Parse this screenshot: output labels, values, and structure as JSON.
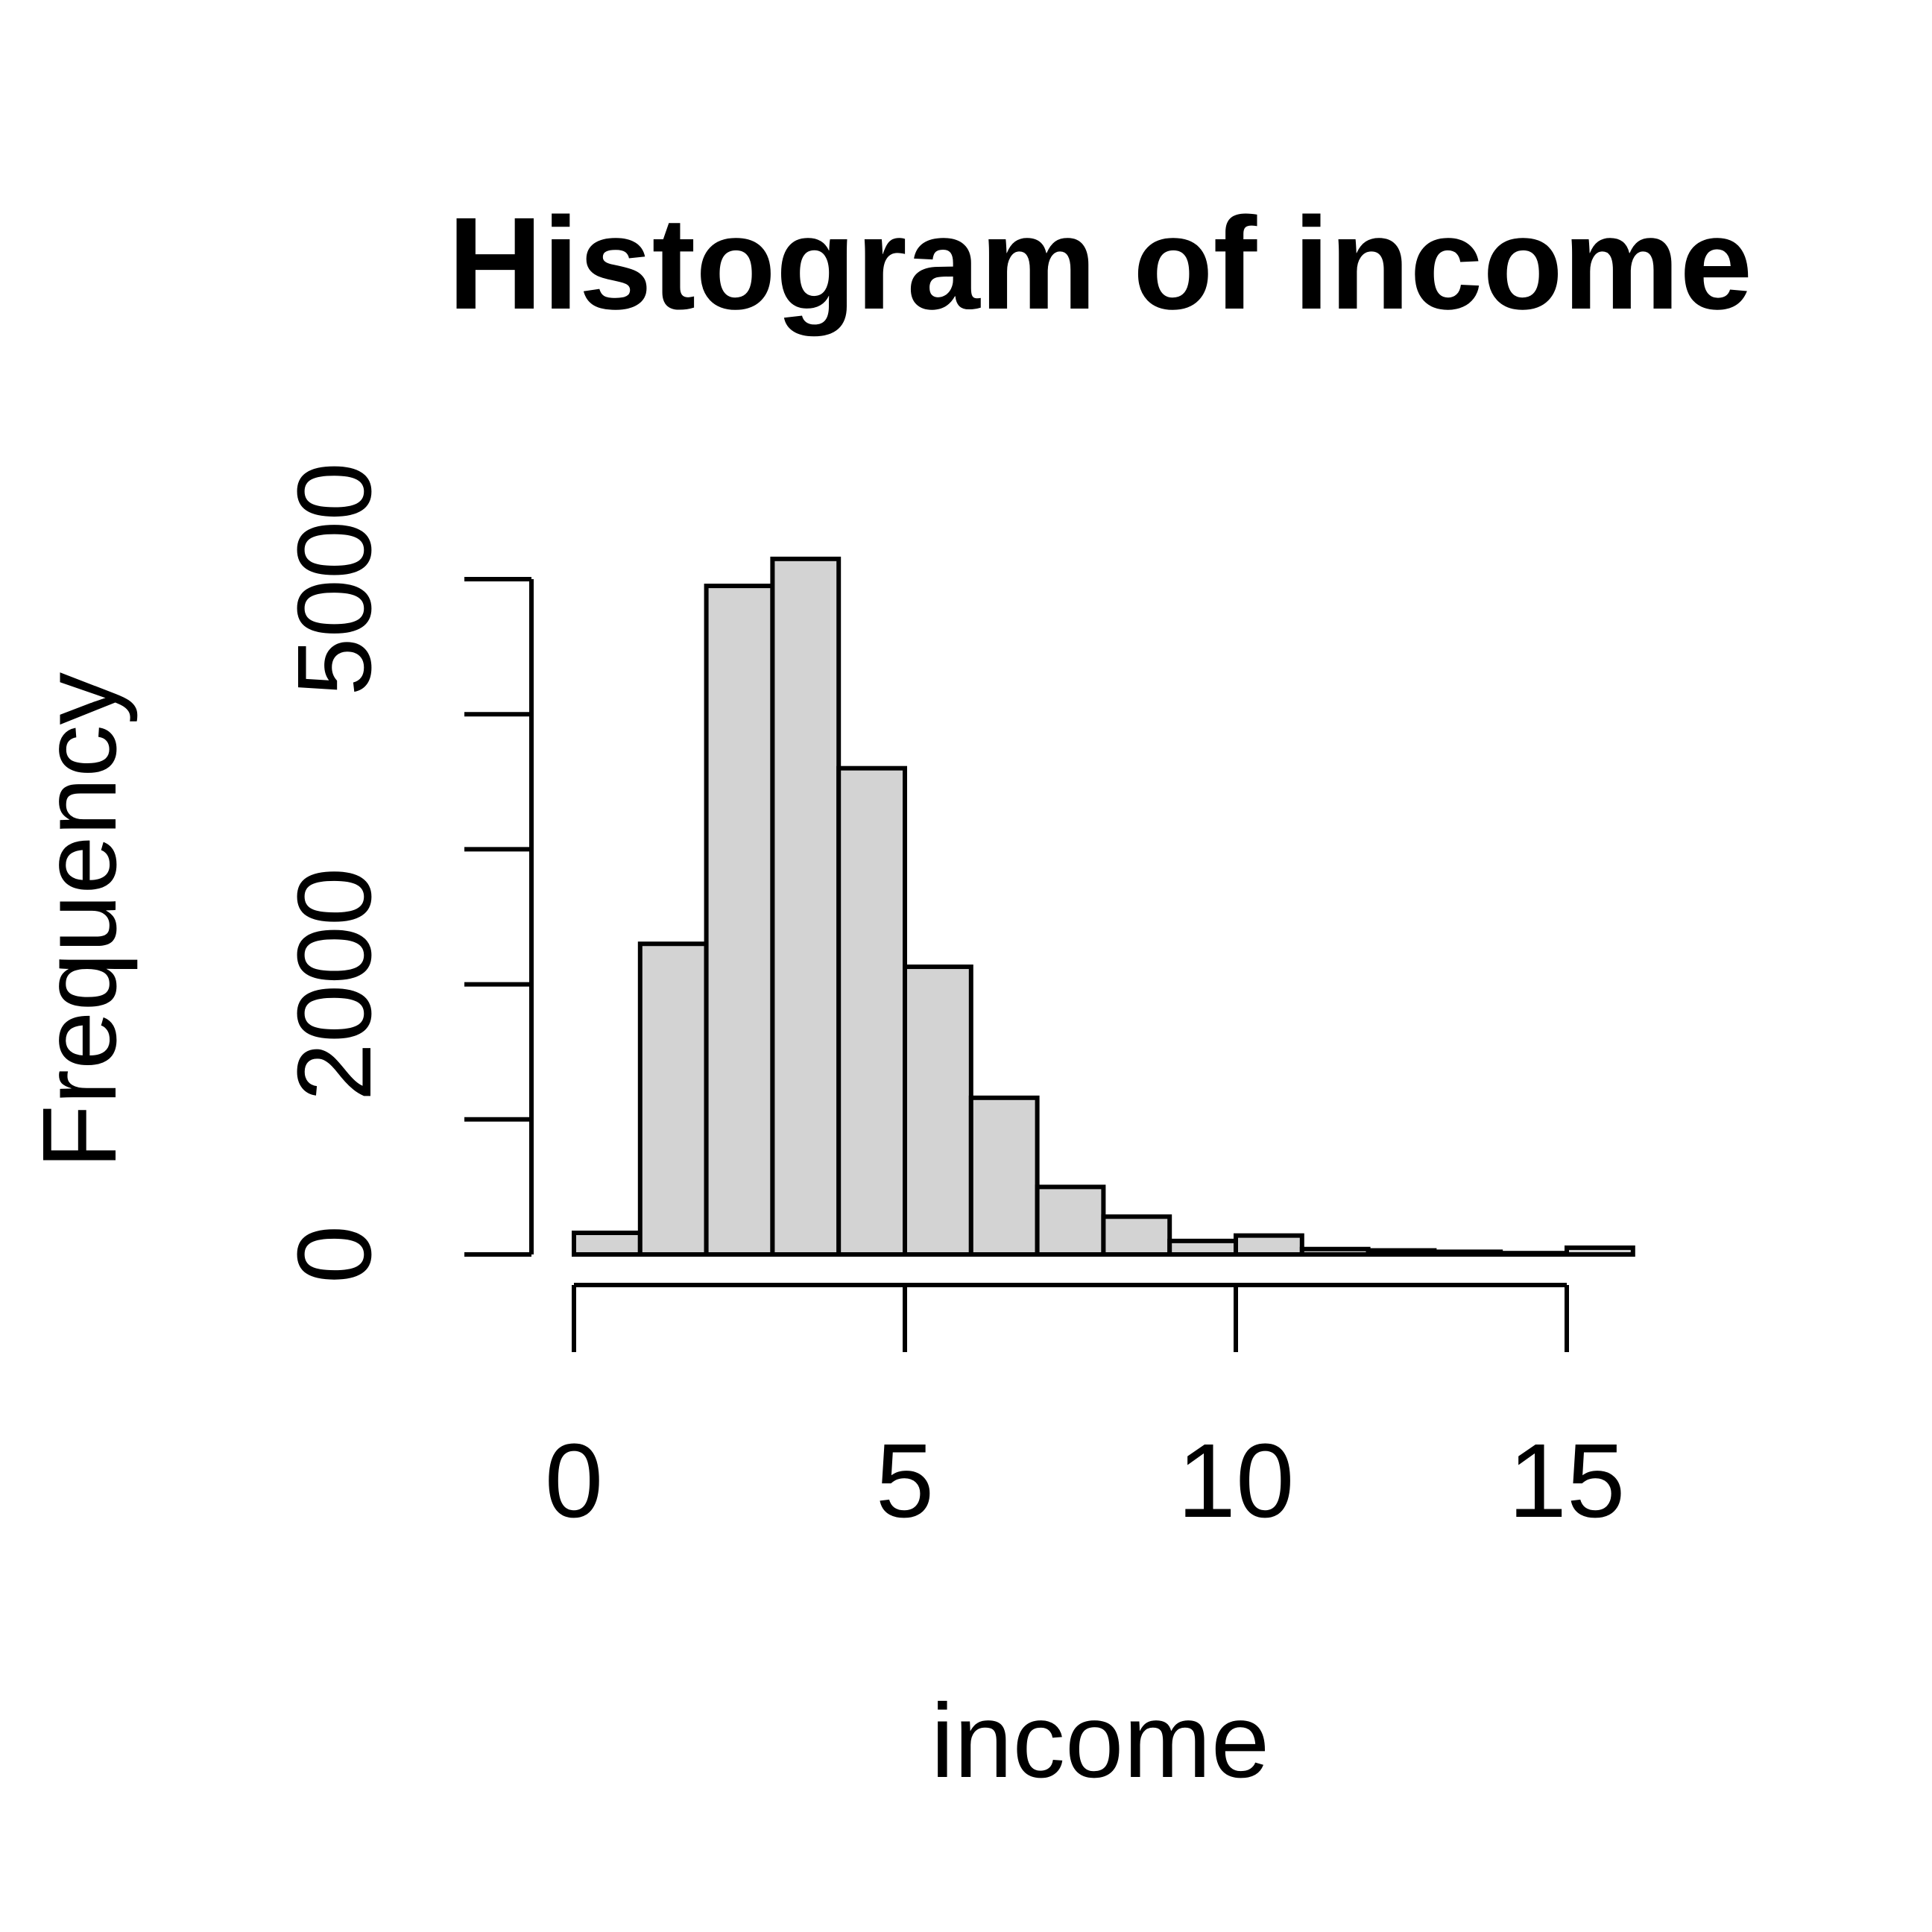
{
  "chart_data": {
    "type": "bar",
    "title": "Histogram of income",
    "xlabel": "income",
    "ylabel": "Frequency",
    "xlim": [
      0,
      16
    ],
    "ylim": [
      0,
      5000
    ],
    "x_ticks": [
      0,
      5,
      10,
      15
    ],
    "y_ticks": [
      0,
      1000,
      2000,
      3000,
      4000,
      5000
    ],
    "y_tick_labels": [
      "0",
      "",
      "2000",
      "",
      "",
      "5000"
    ],
    "bar_fill": "#d3d3d3",
    "bar_edge": "#000000",
    "bins": [
      {
        "start": 0,
        "end": 1,
        "count": 160
      },
      {
        "start": 1,
        "end": 2,
        "count": 2300
      },
      {
        "start": 2,
        "end": 3,
        "count": 4950
      },
      {
        "start": 3,
        "end": 4,
        "count": 5150
      },
      {
        "start": 4,
        "end": 5,
        "count": 3600
      },
      {
        "start": 5,
        "end": 6,
        "count": 2130
      },
      {
        "start": 6,
        "end": 7,
        "count": 1160
      },
      {
        "start": 7,
        "end": 8,
        "count": 500
      },
      {
        "start": 8,
        "end": 9,
        "count": 280
      },
      {
        "start": 9,
        "end": 10,
        "count": 100
      },
      {
        "start": 10,
        "end": 11,
        "count": 140
      },
      {
        "start": 11,
        "end": 12,
        "count": 40
      },
      {
        "start": 12,
        "end": 13,
        "count": 30
      },
      {
        "start": 13,
        "end": 14,
        "count": 20
      },
      {
        "start": 14,
        "end": 15,
        "count": 10
      },
      {
        "start": 15,
        "end": 16,
        "count": 50
      }
    ]
  }
}
